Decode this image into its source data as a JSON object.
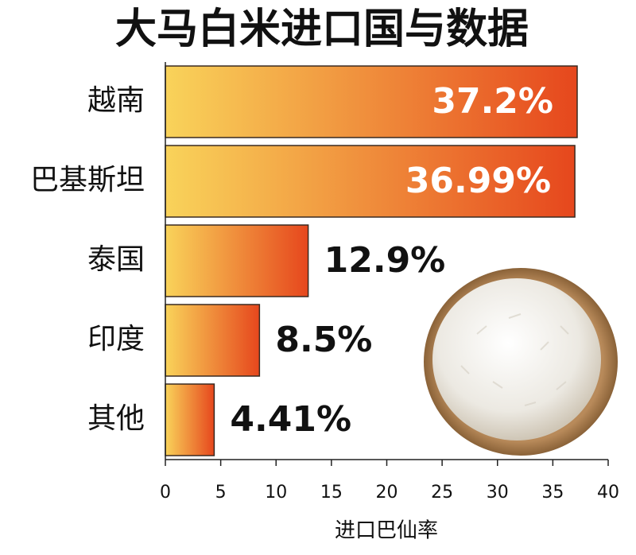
{
  "chart_data": {
    "type": "barh",
    "title": "大马白米进口国与数据",
    "categories": [
      "越南",
      "巴基斯坦",
      "泰国",
      "印度",
      "其他"
    ],
    "values": [
      37.2,
      36.99,
      12.9,
      8.5,
      4.41
    ],
    "value_labels": [
      "37.2%",
      "36.99%",
      "12.9%",
      "8.5%",
      "4.41%"
    ],
    "gradient": [
      "#f9d35a",
      "#e6471d"
    ],
    "xlim": [
      0,
      40
    ],
    "xticks": [
      0,
      5,
      10,
      15,
      20,
      25,
      30,
      35,
      40
    ],
    "xlabel": "进口巴仙率"
  }
}
